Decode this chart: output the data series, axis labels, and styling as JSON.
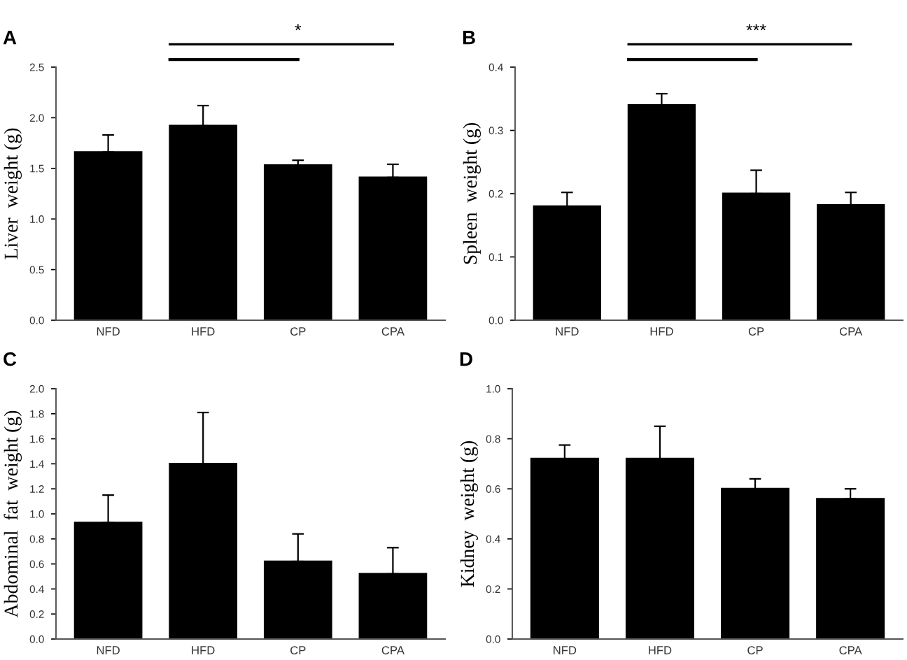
{
  "chart_data": [
    {
      "type": "bar",
      "title": "A",
      "ylabel": "Liver  weight (g)",
      "categories": [
        "NFD",
        "HFD",
        "CP",
        "CPA"
      ],
      "color": "#000000",
      "values": [
        1.66,
        1.92,
        1.53,
        1.41
      ],
      "errors": [
        [
          1.66,
          1.83
        ],
        [
          1.92,
          2.12
        ],
        [
          1.53,
          1.58
        ],
        [
          1.41,
          1.54
        ]
      ],
      "ylim": [
        0,
        2.5
      ],
      "yticks": [
        {
          "value": 0,
          "label": "0.0"
        },
        {
          "value": 0.5,
          "label": "0.5"
        },
        {
          "value": 1,
          "label": "1.0"
        },
        {
          "value": 1.5,
          "label": "1.5"
        },
        {
          "value": 2,
          "label": "2.0"
        },
        {
          "value": 2.5,
          "label": "2.5"
        }
      ],
      "annotations": [
        "*"
      ],
      "grid": false,
      "legend": false
    },
    {
      "type": "bar",
      "title": "B",
      "ylabel": "Spleen  weight (g)",
      "categories": [
        "NFD",
        "HFD",
        "CP",
        "CPA"
      ],
      "color": "#000000",
      "values": [
        0.18,
        0.34,
        0.2,
        0.182
      ],
      "errors": [
        [
          0.18,
          0.202
        ],
        [
          0.34,
          0.358
        ],
        [
          0.2,
          0.237
        ],
        [
          0.182,
          0.202
        ]
      ],
      "ylim": [
        0,
        0.4
      ],
      "yticks": [
        {
          "value": 0,
          "label": "0.0"
        },
        {
          "value": 0.1,
          "label": "0.1"
        },
        {
          "value": 0.2,
          "label": "0.2"
        },
        {
          "value": 0.3,
          "label": "0.3"
        },
        {
          "value": 0.4,
          "label": "0.4"
        }
      ],
      "annotations": [
        "***"
      ],
      "grid": false,
      "legend": false
    },
    {
      "type": "bar",
      "title": "C",
      "ylabel": "Abdominal  fat  weight (g)",
      "categories": [
        "NFD",
        "HFD",
        "CP",
        "CPA"
      ],
      "color": "#000000",
      "values": [
        0.93,
        1.4,
        0.62,
        0.52
      ],
      "errors": [
        [
          0.93,
          1.15
        ],
        [
          1.4,
          1.81
        ],
        [
          0.62,
          0.84
        ],
        [
          0.52,
          0.73
        ]
      ],
      "ylim": [
        0,
        2
      ],
      "yticks": [
        {
          "value": 0,
          "label": "0.0"
        },
        {
          "value": 0.2,
          "label": "0.2"
        },
        {
          "value": 0.4,
          "label": "0.4"
        },
        {
          "value": 0.6,
          "label": "0.6"
        },
        {
          "value": 0.8,
          "label": "0.8"
        },
        {
          "value": 1,
          "label": "1.0"
        },
        {
          "value": 1.2,
          "label": "1.2"
        },
        {
          "value": 1.4,
          "label": "1.4"
        },
        {
          "value": 1.6,
          "label": "1.6"
        },
        {
          "value": 1.8,
          "label": "1.8"
        },
        {
          "value": 2,
          "label": "2.0"
        }
      ],
      "grid": false,
      "legend": false
    },
    {
      "type": "bar",
      "title": "D",
      "ylabel": "Kidney  weight (g)",
      "categories": [
        "NFD",
        "HFD",
        "CP",
        "CPA"
      ],
      "color": "#000000",
      "values": [
        0.72,
        0.72,
        0.6,
        0.56
      ],
      "errors": [
        [
          0.72,
          0.775
        ],
        [
          0.72,
          0.85
        ],
        [
          0.6,
          0.64
        ],
        [
          0.56,
          0.6
        ]
      ],
      "ylim": [
        0,
        1
      ],
      "yticks": [
        {
          "value": 0,
          "label": "0.0"
        },
        {
          "value": 0.2,
          "label": "0.2"
        },
        {
          "value": 0.4,
          "label": "0.4"
        },
        {
          "value": 0.6,
          "label": "0.6"
        },
        {
          "value": 0.8,
          "label": "0.8"
        },
        {
          "value": 1,
          "label": "1.0"
        }
      ],
      "grid": false,
      "legend": false
    }
  ]
}
